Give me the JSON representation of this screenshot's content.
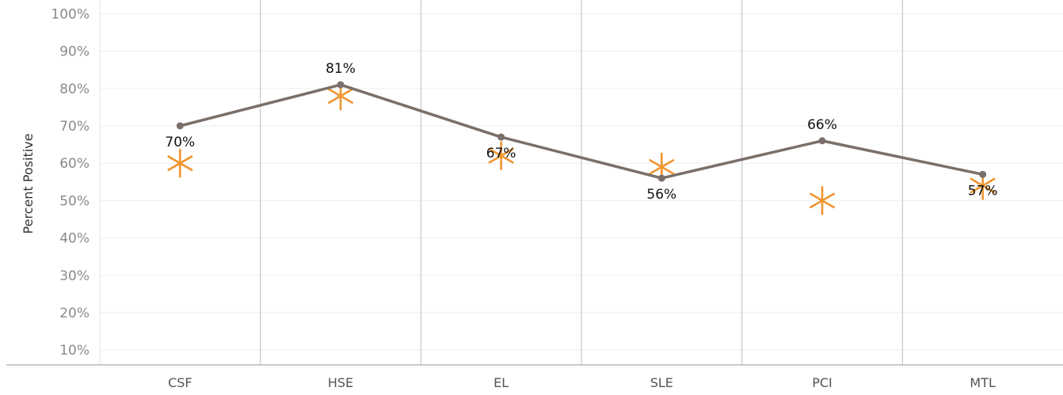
{
  "chart_data": {
    "type": "line",
    "ylabel": "Percent Positive",
    "categories": [
      "CSF",
      "HSE",
      "EL",
      "SLE",
      "PCI",
      "MTL"
    ],
    "y_ticks": [
      10,
      20,
      30,
      40,
      50,
      60,
      70,
      80,
      90,
      100
    ],
    "y_tick_labels": [
      "10%",
      "20%",
      "30%",
      "40%",
      "50%",
      "60%",
      "70%",
      "80%",
      "90%",
      "100%"
    ],
    "ylim": [
      6,
      102
    ],
    "grid": true,
    "legend": "none",
    "series": [
      {
        "values": [
          70,
          81,
          67,
          56,
          66,
          57
        ],
        "data_labels": [
          "70%",
          "81%",
          "67%",
          "56%",
          "66%",
          "57%"
        ],
        "marker": "circle",
        "color": "#7a6f6a"
      },
      {
        "values": [
          60,
          78,
          62,
          59,
          50,
          54
        ],
        "marker": "asterisk",
        "color": "#f0952f"
      }
    ],
    "colors": {
      "line": "#7a6f6a",
      "benchmark": "#f0952f",
      "grid": "#eeeeee",
      "divider": "#bdbdbd"
    }
  }
}
